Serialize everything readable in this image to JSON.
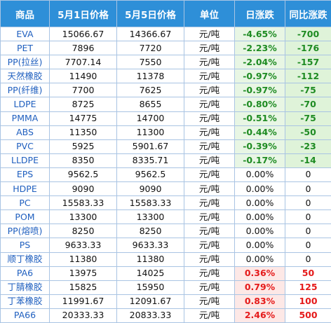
{
  "headers": [
    "商品",
    "5月1日价格",
    "5月5日价格",
    "单位",
    "日涨跌",
    "同比涨跌"
  ],
  "rows": [
    {
      "name": "EVA",
      "p1": "15066.67",
      "p2": "14366.67",
      "unit": "元/吨",
      "chg": "-4.65%",
      "yoy": "-700",
      "dir": "down"
    },
    {
      "name": "PET",
      "p1": "7896",
      "p2": "7720",
      "unit": "元/吨",
      "chg": "-2.23%",
      "yoy": "-176",
      "dir": "down"
    },
    {
      "name": "PP(拉丝)",
      "p1": "7707.14",
      "p2": "7550",
      "unit": "元/吨",
      "chg": "-2.04%",
      "yoy": "-157",
      "dir": "down"
    },
    {
      "name": "天然橡胶",
      "p1": "11490",
      "p2": "11378",
      "unit": "元/吨",
      "chg": "-0.97%",
      "yoy": "-112",
      "dir": "down"
    },
    {
      "name": "PP(纤维)",
      "p1": "7700",
      "p2": "7625",
      "unit": "元/吨",
      "chg": "-0.97%",
      "yoy": "-75",
      "dir": "down"
    },
    {
      "name": "LDPE",
      "p1": "8725",
      "p2": "8655",
      "unit": "元/吨",
      "chg": "-0.80%",
      "yoy": "-70",
      "dir": "down"
    },
    {
      "name": "PMMA",
      "p1": "14775",
      "p2": "14700",
      "unit": "元/吨",
      "chg": "-0.51%",
      "yoy": "-75",
      "dir": "down"
    },
    {
      "name": "ABS",
      "p1": "11350",
      "p2": "11300",
      "unit": "元/吨",
      "chg": "-0.44%",
      "yoy": "-50",
      "dir": "down"
    },
    {
      "name": "PVC",
      "p1": "5925",
      "p2": "5901.67",
      "unit": "元/吨",
      "chg": "-0.39%",
      "yoy": "-23",
      "dir": "down"
    },
    {
      "name": "LLDPE",
      "p1": "8350",
      "p2": "8335.71",
      "unit": "元/吨",
      "chg": "-0.17%",
      "yoy": "-14",
      "dir": "down"
    },
    {
      "name": "EPS",
      "p1": "9562.5",
      "p2": "9562.5",
      "unit": "元/吨",
      "chg": "0.00%",
      "yoy": "0",
      "dir": "flat"
    },
    {
      "name": "HDPE",
      "p1": "9090",
      "p2": "9090",
      "unit": "元/吨",
      "chg": "0.00%",
      "yoy": "0",
      "dir": "flat"
    },
    {
      "name": "PC",
      "p1": "15583.33",
      "p2": "15583.33",
      "unit": "元/吨",
      "chg": "0.00%",
      "yoy": "0",
      "dir": "flat"
    },
    {
      "name": "POM",
      "p1": "13300",
      "p2": "13300",
      "unit": "元/吨",
      "chg": "0.00%",
      "yoy": "0",
      "dir": "flat"
    },
    {
      "name": "PP(熔喷)",
      "p1": "8250",
      "p2": "8250",
      "unit": "元/吨",
      "chg": "0.00%",
      "yoy": "0",
      "dir": "flat"
    },
    {
      "name": "PS",
      "p1": "9633.33",
      "p2": "9633.33",
      "unit": "元/吨",
      "chg": "0.00%",
      "yoy": "0",
      "dir": "flat"
    },
    {
      "name": "顺丁橡胶",
      "p1": "11380",
      "p2": "11380",
      "unit": "元/吨",
      "chg": "0.00%",
      "yoy": "0",
      "dir": "flat"
    },
    {
      "name": "PA6",
      "p1": "13975",
      "p2": "14025",
      "unit": "元/吨",
      "chg": "0.36%",
      "yoy": "50",
      "dir": "up"
    },
    {
      "name": "丁腈橡胶",
      "p1": "15825",
      "p2": "15950",
      "unit": "元/吨",
      "chg": "0.79%",
      "yoy": "125",
      "dir": "up"
    },
    {
      "name": "丁苯橡胶",
      "p1": "11991.67",
      "p2": "12091.67",
      "unit": "元/吨",
      "chg": "0.83%",
      "yoy": "100",
      "dir": "up"
    },
    {
      "name": "PA66",
      "p1": "20333.33",
      "p2": "20833.33",
      "unit": "元/吨",
      "chg": "2.46%",
      "yoy": "500",
      "dir": "up"
    }
  ],
  "colors": {
    "header_bg": "#2e8fd8",
    "name_text": "#1f5fbf",
    "down_text": "#1e8b22",
    "up_text": "#e51b1b"
  }
}
